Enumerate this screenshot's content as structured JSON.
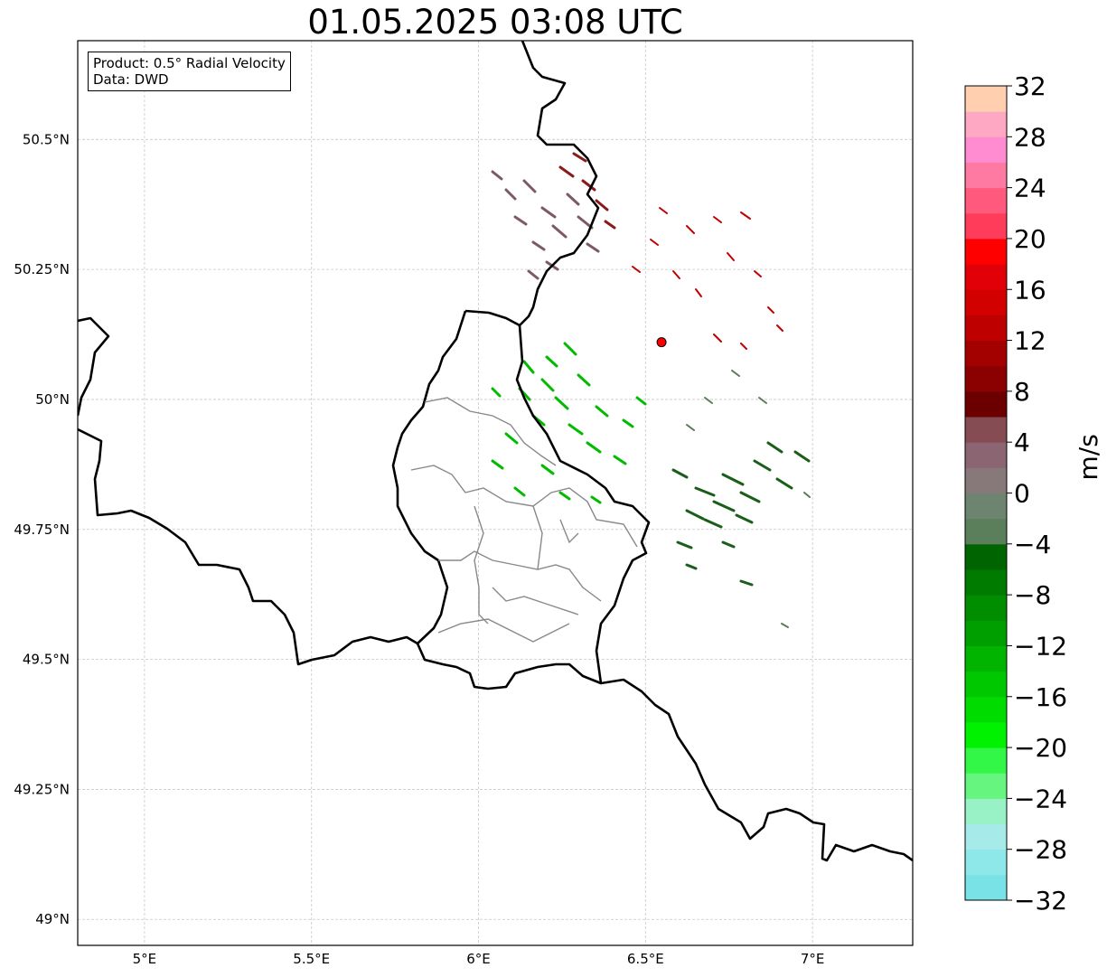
{
  "title": "01.05.2025 03:08 UTC",
  "info": {
    "product": "Product: 0.5° Radial Velocity",
    "source": "Data: DWD"
  },
  "map": {
    "lon_range": [
      4.8,
      7.3
    ],
    "lat_range": [
      48.95,
      50.69
    ],
    "lon_ticks": [
      {
        "v": 5.0,
        "label": "5°E"
      },
      {
        "v": 5.5,
        "label": "5.5°E"
      },
      {
        "v": 6.0,
        "label": "6°E"
      },
      {
        "v": 6.5,
        "label": "6.5°E"
      },
      {
        "v": 7.0,
        "label": "7°E"
      }
    ],
    "lat_ticks": [
      {
        "v": 49.0,
        "label": "49°N"
      },
      {
        "v": 49.25,
        "label": "49.25°N"
      },
      {
        "v": 49.5,
        "label": "49.5°N"
      },
      {
        "v": 49.75,
        "label": "49.75°N"
      },
      {
        "v": 50.0,
        "label": "50°N"
      },
      {
        "v": 50.25,
        "label": "50.25°N"
      },
      {
        "v": 50.5,
        "label": "50.5°N"
      }
    ],
    "gridlines": true,
    "radar_site": {
      "lon": 6.548,
      "lat": 50.11,
      "color": "#ff0000"
    }
  },
  "colorbar": {
    "unit": "m/s",
    "min": -32,
    "max": 32,
    "tick_labels": [
      "32",
      "28",
      "24",
      "20",
      "16",
      "12",
      "8",
      "4",
      "0",
      "−4",
      "−8",
      "−12",
      "−16",
      "−20",
      "−24",
      "−28",
      "−32"
    ],
    "colors_bottom_to_top": [
      "#78e2e6",
      "#8ee8ea",
      "#a6eaea",
      "#99f2c6",
      "#66f57f",
      "#33f747",
      "#00f200",
      "#00dc00",
      "#00c800",
      "#00b400",
      "#009f00",
      "#008d00",
      "#007b00",
      "#006400",
      "#5a7f5a",
      "#6d8470",
      "#87787a",
      "#8b6672",
      "#864c53",
      "#6c0000",
      "#8b0000",
      "#a30000",
      "#be0000",
      "#d30000",
      "#e10008",
      "#ff0000",
      "#ff3c5a",
      "#ff5a7d",
      "#ff7aa2",
      "#ff8bd0",
      "#ffa8c4",
      "#ffcfb0"
    ]
  }
}
